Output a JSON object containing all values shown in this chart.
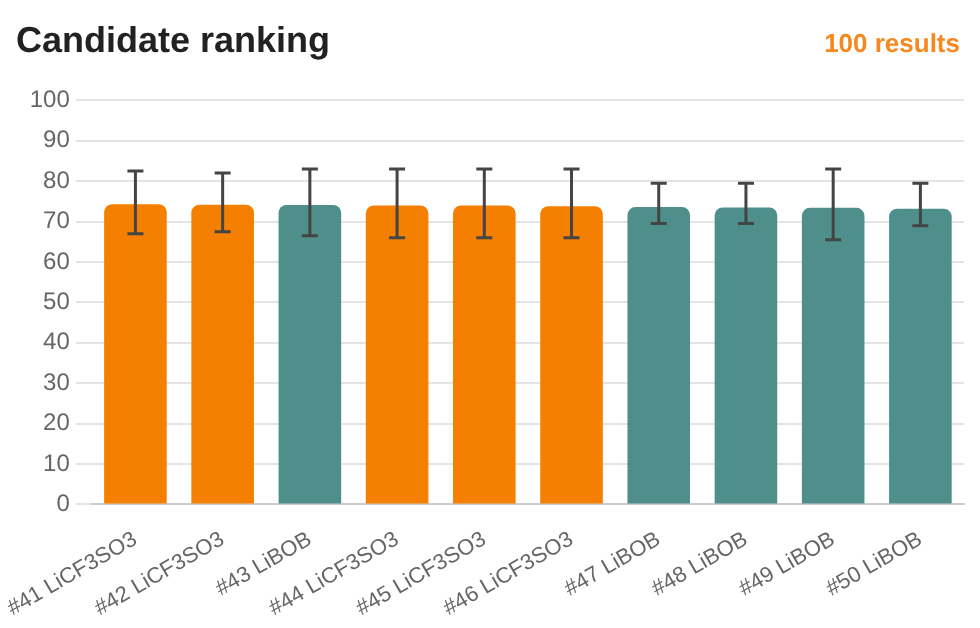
{
  "chart_data": {
    "type": "bar",
    "title": "Candidate ranking",
    "annotations": [
      "100 results"
    ],
    "categories": [
      "#41 LiCF3SO3",
      "#42 LiCF3SO3",
      "#43 LiBOB",
      "#44 LiCF3SO3",
      "#45 LiCF3SO3",
      "#46 LiCF3SO3",
      "#47 LiBOB",
      "#48 LiBOB",
      "#49 LiBOB",
      "#50 LiBOB"
    ],
    "values": [
      74.3,
      74.2,
      74.1,
      74,
      74,
      73.8,
      73.6,
      73.5,
      73.4,
      73.2
    ],
    "colors": [
      "#f57f00",
      "#f57f00",
      "#4f8f8b",
      "#f57f00",
      "#f57f00",
      "#f57f00",
      "#4f8f8b",
      "#4f8f8b",
      "#4f8f8b",
      "#4f8f8b"
    ],
    "errors": [
      [
        67,
        82.5
      ],
      [
        67.5,
        82
      ],
      [
        66.5,
        83
      ],
      [
        66,
        83
      ],
      [
        66,
        83
      ],
      [
        66,
        83
      ],
      [
        69.5,
        79.5
      ],
      [
        69.5,
        79.5
      ],
      [
        65.5,
        83
      ],
      [
        69,
        79.5
      ]
    ],
    "ylim": [
      0,
      100
    ],
    "yticks": [
      0,
      10,
      20,
      30,
      40,
      50,
      60,
      70,
      80,
      90,
      100
    ],
    "grid": "y",
    "legend": false
  }
}
